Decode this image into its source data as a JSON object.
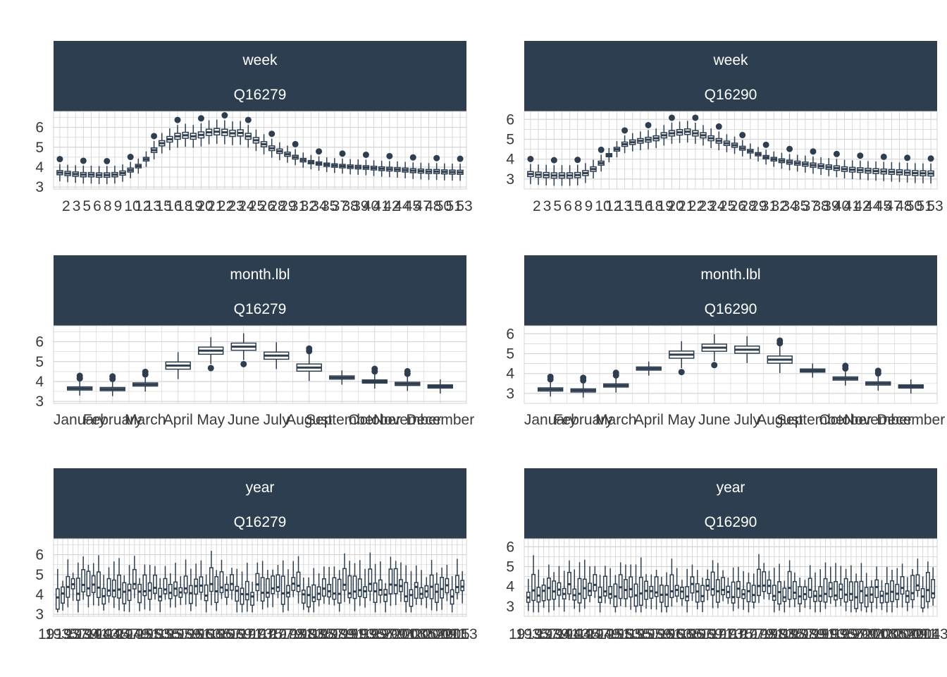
{
  "colors": {
    "strip": "#2c3e50",
    "box": "#2c3e50",
    "grid": "#d4d4d4",
    "axis_text": "#3a3a3a"
  },
  "chart_data": [
    {
      "type": "boxplot",
      "strip": [
        "week",
        "Q16279"
      ],
      "ylim": [
        2.9,
        6.8
      ],
      "yticks": [
        3,
        4,
        5,
        6
      ],
      "categories": [
        2,
        3,
        4,
        5,
        6,
        7,
        8,
        9,
        10,
        11,
        12,
        13,
        14,
        15,
        16,
        17,
        18,
        19,
        20,
        21,
        22,
        23,
        24,
        25,
        26,
        27,
        28,
        29,
        30,
        31,
        32,
        33,
        34,
        35,
        36,
        37,
        38,
        39,
        40,
        41,
        42,
        43,
        44,
        45,
        46,
        47,
        48,
        49,
        50,
        51,
        52,
        53
      ],
      "medians": [
        3.72,
        3.68,
        3.65,
        3.62,
        3.62,
        3.6,
        3.6,
        3.62,
        3.7,
        3.85,
        4.05,
        4.4,
        4.85,
        5.2,
        5.4,
        5.55,
        5.6,
        5.55,
        5.62,
        5.75,
        5.78,
        5.75,
        5.7,
        5.72,
        5.55,
        5.35,
        5.15,
        4.95,
        4.8,
        4.65,
        4.5,
        4.35,
        4.25,
        4.18,
        4.12,
        4.08,
        4.05,
        4.02,
        4.0,
        3.98,
        3.95,
        3.92,
        3.9,
        3.88,
        3.85,
        3.82,
        3.8,
        3.78,
        3.78,
        3.76,
        3.75,
        3.74
      ],
      "xticks_shown": [
        "2",
        "3",
        "5",
        "6",
        "8",
        "9",
        "10",
        "12",
        "13",
        "15",
        "16",
        "18",
        "19",
        "20",
        "21",
        "22",
        "23",
        "24",
        "25",
        "26",
        "28",
        "29",
        "31",
        "32",
        "34",
        "35",
        "37",
        "38",
        "39",
        "40",
        "41",
        "42",
        "44",
        "45",
        "47",
        "48",
        "50",
        "51",
        "53"
      ]
    },
    {
      "type": "boxplot",
      "strip": [
        "week",
        "Q16290"
      ],
      "ylim": [
        2.5,
        6.4
      ],
      "yticks": [
        3,
        4,
        5,
        6
      ],
      "categories": [
        2,
        3,
        4,
        5,
        6,
        7,
        8,
        9,
        10,
        11,
        12,
        13,
        14,
        15,
        16,
        17,
        18,
        19,
        20,
        21,
        22,
        23,
        24,
        25,
        26,
        27,
        28,
        29,
        30,
        31,
        32,
        33,
        34,
        35,
        36,
        37,
        38,
        39,
        40,
        41,
        42,
        43,
        44,
        45,
        46,
        47,
        48,
        49,
        50,
        51,
        52,
        53
      ],
      "medians": [
        3.25,
        3.22,
        3.2,
        3.18,
        3.18,
        3.18,
        3.2,
        3.3,
        3.5,
        3.8,
        4.2,
        4.5,
        4.75,
        4.85,
        4.92,
        4.98,
        5.05,
        5.2,
        5.3,
        5.35,
        5.38,
        5.3,
        5.2,
        5.05,
        4.92,
        4.8,
        4.7,
        4.55,
        4.4,
        4.25,
        4.1,
        4.0,
        3.92,
        3.85,
        3.8,
        3.75,
        3.7,
        3.65,
        3.6,
        3.55,
        3.5,
        3.47,
        3.45,
        3.42,
        3.4,
        3.38,
        3.36,
        3.34,
        3.32,
        3.3,
        3.29,
        3.28
      ],
      "xticks_shown": [
        "2",
        "3",
        "5",
        "6",
        "8",
        "9",
        "10",
        "12",
        "13",
        "15",
        "16",
        "18",
        "19",
        "20",
        "21",
        "22",
        "23",
        "24",
        "25",
        "26",
        "28",
        "29",
        "31",
        "32",
        "34",
        "35",
        "37",
        "38",
        "39",
        "40",
        "41",
        "42",
        "44",
        "45",
        "47",
        "48",
        "50",
        "51",
        "53"
      ]
    },
    {
      "type": "boxplot",
      "strip": [
        "month.lbl",
        "Q16279"
      ],
      "ylim": [
        2.9,
        6.8
      ],
      "yticks": [
        3,
        4,
        5,
        6
      ],
      "categories": [
        "January",
        "February",
        "March",
        "April",
        "May",
        "June",
        "July",
        "August",
        "September",
        "October",
        "November",
        "December"
      ],
      "medians": [
        3.65,
        3.62,
        3.85,
        4.8,
        5.55,
        5.75,
        5.3,
        4.7,
        4.2,
        4.0,
        3.88,
        3.75
      ]
    },
    {
      "type": "boxplot",
      "strip": [
        "month.lbl",
        "Q16290"
      ],
      "ylim": [
        2.5,
        6.4
      ],
      "yticks": [
        3,
        4,
        5,
        6
      ],
      "categories": [
        "January",
        "February",
        "March",
        "April",
        "May",
        "June",
        "July",
        "August",
        "September",
        "October",
        "November",
        "December"
      ],
      "medians": [
        3.2,
        3.15,
        3.4,
        4.25,
        4.95,
        5.3,
        5.2,
        4.7,
        4.15,
        3.75,
        3.5,
        3.35
      ]
    },
    {
      "type": "boxplot",
      "strip": [
        "year",
        "Q16279"
      ],
      "ylim": [
        2.9,
        6.8
      ],
      "yticks": [
        3,
        4,
        5,
        6
      ],
      "first_label": "19",
      "last_label": "2015",
      "n_categories": 80,
      "median_level": 4.2
    },
    {
      "type": "boxplot",
      "strip": [
        "year",
        "Q16290"
      ],
      "ylim": [
        2.5,
        6.4
      ],
      "yticks": [
        3,
        4,
        5,
        6
      ],
      "first_label": "19",
      "last_label": "2014",
      "n_categories": 80,
      "median_level": 3.8
    }
  ]
}
